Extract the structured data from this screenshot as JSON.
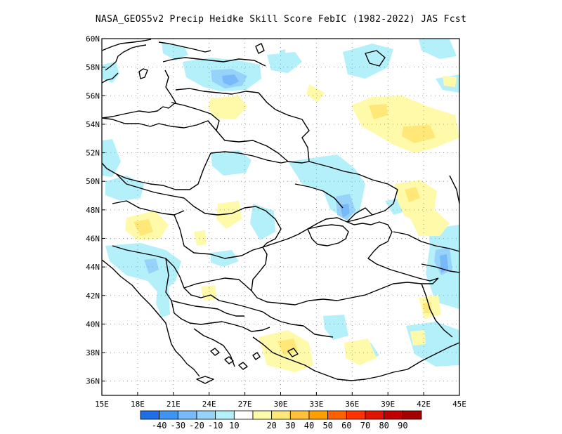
{
  "title": "NASA_GEOS5v2 Precip Heidke Skill Score FebIC (1982-2022) JAS Fcst",
  "map": {
    "projection": "lat-lon",
    "lon_range": [
      15,
      45
    ],
    "lat_range": [
      35,
      60
    ],
    "grid": "dotted",
    "colors": {
      "land_boundary": "#000000",
      "grid": "#9a9a9a",
      "neg_10": "#b4f0fa",
      "neg_20": "#96d2fa",
      "neg_30": "#78b9fa",
      "neg_40": "#3c95f0",
      "neg_50": "#1e6ee6",
      "pos_10": "#fffaaa",
      "pos_20": "#ffe878",
      "pos_30": "#ffc03c"
    }
  },
  "axes": {
    "x_ticks": [
      "15E",
      "18E",
      "21E",
      "24E",
      "27E",
      "30E",
      "33E",
      "36E",
      "39E",
      "42E",
      "45E"
    ],
    "y_ticks": [
      "36N",
      "38N",
      "40N",
      "42N",
      "44N",
      "46N",
      "48N",
      "50N",
      "52N",
      "54N",
      "56N",
      "58N",
      "60N"
    ]
  },
  "colorbar": {
    "colors": [
      "#1e6ee6",
      "#3c95f0",
      "#78b9fa",
      "#96d2fa",
      "#b4f0fa",
      "#ffffff",
      "#fffaaa",
      "#ffe878",
      "#ffc03c",
      "#ffa000",
      "#ff6000",
      "#ff3200",
      "#e11400",
      "#c00000",
      "#a50000"
    ],
    "labels": [
      "-40",
      "-30",
      "-20",
      "-10",
      "10",
      "20",
      "30",
      "40",
      "50",
      "60",
      "70",
      "80",
      "90"
    ]
  }
}
